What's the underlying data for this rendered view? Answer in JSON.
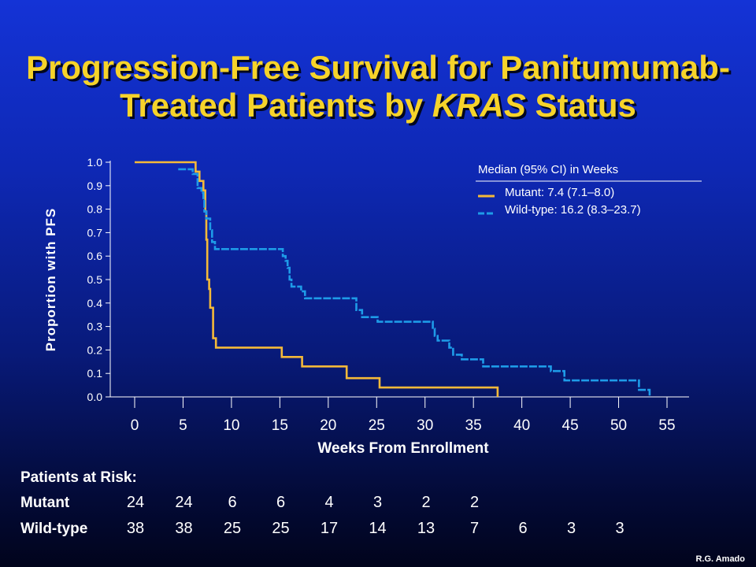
{
  "title_line1": "Progression-Free Survival for Panitumumab-",
  "title_line2_prefix": "Treated Patients by ",
  "title_line2_italic": "KRAS",
  "title_line2_suffix": " Status",
  "credit": "R.G. Amado",
  "colors": {
    "mutant": "#f4b939",
    "wildtype": "#1e9be8",
    "title": "#f6d32a",
    "axis": "#ffffff"
  },
  "chart_data": {
    "type": "line",
    "subtype": "kaplan-meier step",
    "xlabel": "Weeks From Enrollment",
    "ylabel": "Proportion with PFS",
    "xlim": [
      0,
      55
    ],
    "ylim": [
      0,
      1.0
    ],
    "x_ticks": [
      0,
      5,
      10,
      15,
      20,
      25,
      30,
      35,
      40,
      45,
      50,
      55
    ],
    "y_ticks": [
      "0.0",
      "0.1",
      "0.2",
      "0.3",
      "0.4",
      "0.5",
      "0.6",
      "0.7",
      "0.8",
      "0.9",
      "1.0"
    ],
    "legend": {
      "title": "Median (95% CI) in Weeks",
      "placement": "top-right",
      "entries": [
        {
          "label": "Mutant: 7.4 (7.1–8.0)",
          "style": "solid",
          "color": "#f4b939"
        },
        {
          "label": "Wild-type: 16.2 (8.3–23.7)",
          "style": "dashed",
          "color": "#1e9be8"
        }
      ]
    },
    "series": [
      {
        "name": "Mutant",
        "style": "solid",
        "color": "#f4b939",
        "points": [
          [
            0,
            1.0
          ],
          [
            6.3,
            1.0
          ],
          [
            6.3,
            0.96
          ],
          [
            6.7,
            0.96
          ],
          [
            6.7,
            0.92
          ],
          [
            7.1,
            0.92
          ],
          [
            7.1,
            0.88
          ],
          [
            7.3,
            0.88
          ],
          [
            7.3,
            0.79
          ],
          [
            7.4,
            0.79
          ],
          [
            7.4,
            0.67
          ],
          [
            7.5,
            0.67
          ],
          [
            7.5,
            0.5
          ],
          [
            7.7,
            0.5
          ],
          [
            7.7,
            0.46
          ],
          [
            7.8,
            0.46
          ],
          [
            7.8,
            0.38
          ],
          [
            8.1,
            0.38
          ],
          [
            8.1,
            0.25
          ],
          [
            8.4,
            0.25
          ],
          [
            8.4,
            0.21
          ],
          [
            15.2,
            0.21
          ],
          [
            15.2,
            0.17
          ],
          [
            17.3,
            0.17
          ],
          [
            17.3,
            0.13
          ],
          [
            21.9,
            0.13
          ],
          [
            21.9,
            0.08
          ],
          [
            25.3,
            0.08
          ],
          [
            25.3,
            0.04
          ],
          [
            37.5,
            0.04
          ],
          [
            37.5,
            0.0
          ]
        ]
      },
      {
        "name": "Wild-type",
        "style": "dashed",
        "color": "#1e9be8",
        "points": [
          [
            4.5,
            0.97
          ],
          [
            6.0,
            0.97
          ],
          [
            6.0,
            0.95
          ],
          [
            6.5,
            0.95
          ],
          [
            6.5,
            0.89
          ],
          [
            6.9,
            0.89
          ],
          [
            6.9,
            0.87
          ],
          [
            7.1,
            0.87
          ],
          [
            7.1,
            0.84
          ],
          [
            7.2,
            0.84
          ],
          [
            7.2,
            0.79
          ],
          [
            7.4,
            0.79
          ],
          [
            7.4,
            0.76
          ],
          [
            7.8,
            0.76
          ],
          [
            7.8,
            0.71
          ],
          [
            8.0,
            0.71
          ],
          [
            8.0,
            0.66
          ],
          [
            8.3,
            0.66
          ],
          [
            8.3,
            0.63
          ],
          [
            15.3,
            0.63
          ],
          [
            15.3,
            0.6
          ],
          [
            15.6,
            0.6
          ],
          [
            15.6,
            0.58
          ],
          [
            15.8,
            0.58
          ],
          [
            15.8,
            0.55
          ],
          [
            16.0,
            0.55
          ],
          [
            16.0,
            0.5
          ],
          [
            16.2,
            0.5
          ],
          [
            16.2,
            0.47
          ],
          [
            17.2,
            0.47
          ],
          [
            17.2,
            0.45
          ],
          [
            17.6,
            0.45
          ],
          [
            17.6,
            0.42
          ],
          [
            22.9,
            0.42
          ],
          [
            22.9,
            0.37
          ],
          [
            23.5,
            0.37
          ],
          [
            23.5,
            0.34
          ],
          [
            25.1,
            0.34
          ],
          [
            25.1,
            0.32
          ],
          [
            30.8,
            0.32
          ],
          [
            30.8,
            0.29
          ],
          [
            31.0,
            0.29
          ],
          [
            31.0,
            0.26
          ],
          [
            31.3,
            0.26
          ],
          [
            31.3,
            0.24
          ],
          [
            32.5,
            0.24
          ],
          [
            32.5,
            0.21
          ],
          [
            32.9,
            0.21
          ],
          [
            32.9,
            0.18
          ],
          [
            33.8,
            0.18
          ],
          [
            33.8,
            0.16
          ],
          [
            36.0,
            0.16
          ],
          [
            36.0,
            0.13
          ],
          [
            43.0,
            0.13
          ],
          [
            43.0,
            0.11
          ],
          [
            44.4,
            0.11
          ],
          [
            44.4,
            0.07
          ],
          [
            52.1,
            0.07
          ],
          [
            52.1,
            0.03
          ],
          [
            53.2,
            0.03
          ],
          [
            53.2,
            0.0
          ]
        ]
      }
    ],
    "risk_table": {
      "title": "Patients at Risk:",
      "weeks": [
        0,
        5,
        10,
        15,
        20,
        25,
        30,
        35,
        40,
        45,
        50
      ],
      "rows": [
        {
          "label": "Mutant",
          "values": [
            "24",
            "24",
            "6",
            "6",
            "4",
            "3",
            "2",
            "2"
          ]
        },
        {
          "label": "Wild-type",
          "values": [
            "38",
            "38",
            "25",
            "25",
            "17",
            "14",
            "13",
            "7",
            "6",
            "3",
            "3"
          ]
        }
      ]
    }
  }
}
